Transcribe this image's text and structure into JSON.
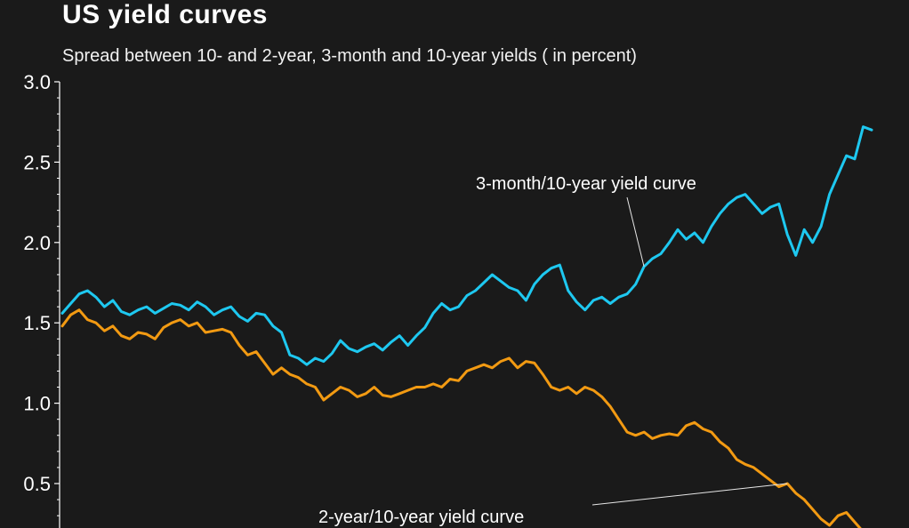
{
  "chart_data": {
    "type": "line",
    "title": "US yield curves",
    "subtitle": "Spread between 10- and 2-year, 3-month and 10-year yields ( in percent)",
    "xlabel": "",
    "ylabel": "",
    "ylim": [
      0.25,
      3.0
    ],
    "yticks": [
      0.5,
      1.0,
      1.5,
      2.0,
      2.5,
      3.0
    ],
    "ytick_labels": [
      "0.5",
      "1.0",
      "1.5",
      "2.0",
      "2.5",
      "3.0"
    ],
    "grid": false,
    "series": [
      {
        "label": "3-month/10-year yield curve",
        "color": "#1ec8f0",
        "values": [
          1.56,
          1.62,
          1.68,
          1.7,
          1.66,
          1.6,
          1.64,
          1.57,
          1.55,
          1.58,
          1.6,
          1.56,
          1.59,
          1.62,
          1.61,
          1.58,
          1.63,
          1.6,
          1.55,
          1.58,
          1.6,
          1.54,
          1.51,
          1.56,
          1.55,
          1.48,
          1.44,
          1.3,
          1.28,
          1.24,
          1.28,
          1.26,
          1.31,
          1.39,
          1.34,
          1.32,
          1.35,
          1.37,
          1.33,
          1.38,
          1.42,
          1.36,
          1.42,
          1.47,
          1.56,
          1.62,
          1.58,
          1.6,
          1.67,
          1.7,
          1.75,
          1.8,
          1.76,
          1.72,
          1.7,
          1.64,
          1.74,
          1.8,
          1.84,
          1.86,
          1.7,
          1.63,
          1.58,
          1.64,
          1.66,
          1.62,
          1.66,
          1.68,
          1.74,
          1.85,
          1.9,
          1.93,
          2.0,
          2.08,
          2.02,
          2.06,
          2.0,
          2.1,
          2.18,
          2.24,
          2.28,
          2.3,
          2.24,
          2.18,
          2.22,
          2.24,
          2.05,
          1.92,
          2.08,
          2.0,
          2.1,
          2.3,
          2.42,
          2.54,
          2.52,
          2.72,
          2.7
        ]
      },
      {
        "label": "2-year/10-year yield curve",
        "color": "#f29a12",
        "values": [
          1.48,
          1.55,
          1.58,
          1.52,
          1.5,
          1.45,
          1.48,
          1.42,
          1.4,
          1.44,
          1.43,
          1.4,
          1.47,
          1.5,
          1.52,
          1.48,
          1.5,
          1.44,
          1.45,
          1.46,
          1.44,
          1.36,
          1.3,
          1.32,
          1.25,
          1.18,
          1.22,
          1.18,
          1.16,
          1.12,
          1.1,
          1.02,
          1.06,
          1.1,
          1.08,
          1.04,
          1.06,
          1.1,
          1.05,
          1.04,
          1.06,
          1.08,
          1.1,
          1.1,
          1.12,
          1.1,
          1.15,
          1.14,
          1.2,
          1.22,
          1.24,
          1.22,
          1.26,
          1.28,
          1.22,
          1.26,
          1.25,
          1.18,
          1.1,
          1.08,
          1.1,
          1.06,
          1.1,
          1.08,
          1.04,
          0.98,
          0.9,
          0.82,
          0.8,
          0.82,
          0.78,
          0.8,
          0.81,
          0.8,
          0.86,
          0.88,
          0.84,
          0.82,
          0.76,
          0.72,
          0.65,
          0.62,
          0.6,
          0.56,
          0.52,
          0.48,
          0.5,
          0.44,
          0.4,
          0.34,
          0.28,
          0.24,
          0.3,
          0.32,
          0.26,
          0.2,
          0.18
        ]
      }
    ],
    "annotations": [
      {
        "text": "3-month/10-year yield curve",
        "series": 0
      },
      {
        "text": "2-year/10-year yield curve",
        "series": 1
      }
    ]
  },
  "colors": {
    "background": "#1a1a1a",
    "axis": "#ffffff",
    "leader": "#e6e6e6"
  }
}
